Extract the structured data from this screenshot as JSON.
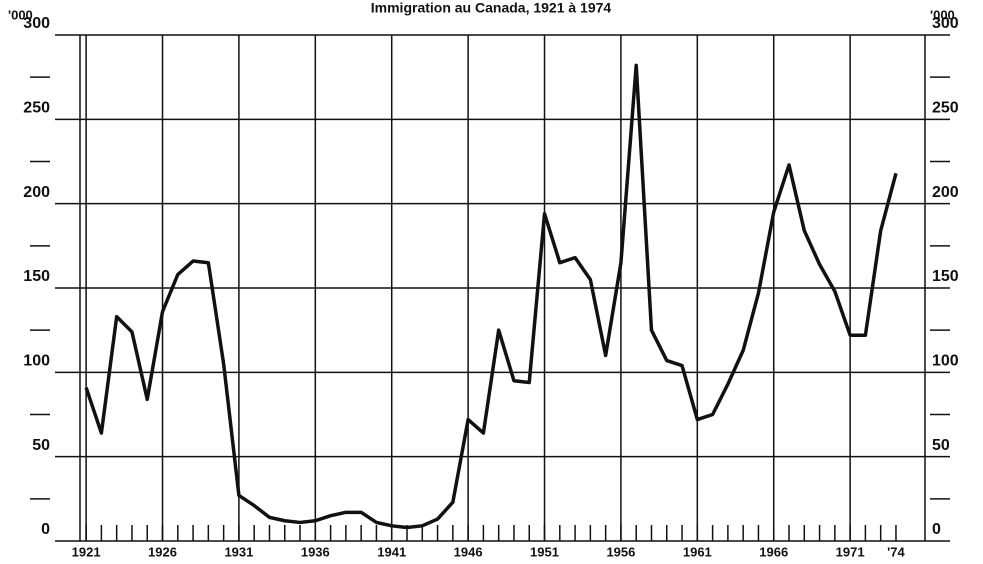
{
  "chart_data": {
    "type": "line",
    "title": "Immigration au Canada, 1921 à 1974",
    "ylabel": "'000",
    "x": [
      1921,
      1922,
      1923,
      1924,
      1925,
      1926,
      1927,
      1928,
      1929,
      1930,
      1931,
      1932,
      1933,
      1934,
      1935,
      1936,
      1937,
      1938,
      1939,
      1940,
      1941,
      1942,
      1943,
      1944,
      1945,
      1946,
      1947,
      1948,
      1949,
      1950,
      1951,
      1952,
      1953,
      1954,
      1955,
      1956,
      1957,
      1958,
      1959,
      1960,
      1961,
      1962,
      1963,
      1964,
      1965,
      1966,
      1967,
      1968,
      1969,
      1970,
      1971,
      1972,
      1973,
      1974
    ],
    "series": [
      {
        "name": "Immigration",
        "color": "#111111",
        "values": [
          91,
          64,
          133,
          124,
          84,
          136,
          158,
          166,
          165,
          105,
          27,
          21,
          14,
          12,
          11,
          12,
          15,
          17,
          17,
          11,
          9,
          8,
          9,
          13,
          23,
          72,
          64,
          125,
          95,
          94,
          194,
          165,
          168,
          155,
          110,
          165,
          282,
          125,
          107,
          104,
          72,
          75,
          93,
          113,
          147,
          195,
          223,
          184,
          164,
          148,
          122,
          122,
          184,
          218
        ]
      }
    ],
    "xlim": [
      1920.6,
      1975.9
    ],
    "xticks": [
      1921,
      1926,
      1931,
      1936,
      1941,
      1946,
      1951,
      1956,
      1961,
      1966,
      1971,
      {
        "value": 1974,
        "label": "'74"
      }
    ],
    "ylim": [
      0,
      300
    ],
    "yticks": [
      0,
      50,
      100,
      150,
      200,
      250,
      300
    ],
    "yminorticks": [
      25,
      75,
      125,
      175,
      225,
      275
    ],
    "grid": true
  }
}
